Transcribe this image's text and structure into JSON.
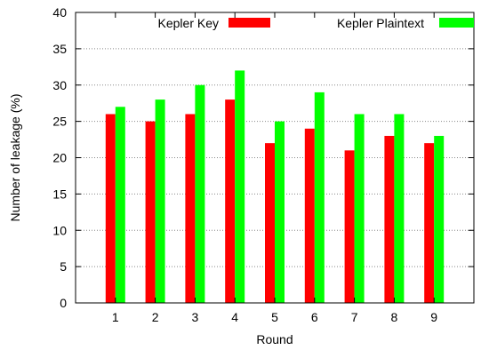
{
  "chart_data": {
    "type": "bar",
    "categories": [
      "1",
      "2",
      "3",
      "4",
      "5",
      "6",
      "7",
      "8",
      "9"
    ],
    "series": [
      {
        "name": "Kepler Key",
        "color": "#ff0000",
        "values": [
          26,
          25,
          26,
          28,
          22,
          24,
          21,
          23,
          22
        ]
      },
      {
        "name": "Kepler Plaintext",
        "color": "#00ff00",
        "values": [
          27,
          28,
          30,
          32,
          25,
          29,
          26,
          26,
          23
        ]
      }
    ],
    "xlabel": "Round",
    "ylabel": "Number of leakage (%)",
    "ylim": [
      0,
      40
    ],
    "yticks": [
      0,
      5,
      10,
      15,
      20,
      25,
      30,
      35,
      40
    ],
    "grid": "horizontal dotted",
    "legend_position": "top"
  }
}
